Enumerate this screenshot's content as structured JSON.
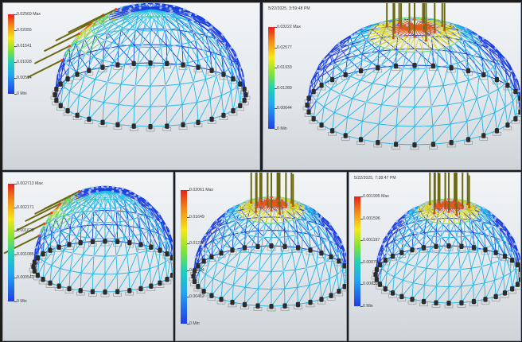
{
  "panels": [
    {
      "id": "p1",
      "timestamp": "",
      "legend": [
        "0.02569 Max",
        "0.02055",
        "0.01541",
        "0.01028",
        "0.00514",
        "0 Min"
      ],
      "load": "side"
    },
    {
      "id": "p2",
      "timestamp": "5/22/2025, 3:59:48 PM",
      "legend": [
        "0.03222 Max",
        "0.02577",
        "0.01933",
        "0.01289",
        "0.00644",
        "0 Min"
      ],
      "load": "top"
    },
    {
      "id": "p3",
      "timestamp": "",
      "legend": [
        "0.002713 Max",
        "0.002171",
        "0.001628",
        "0.001085",
        "0.000543",
        "0 Min"
      ],
      "load": "side"
    },
    {
      "id": "p4",
      "timestamp": "",
      "legend": [
        "0.02061 Max",
        "0.01649",
        "0.01236",
        "0.00824",
        "0.00412",
        "0 Min"
      ],
      "load": "top"
    },
    {
      "id": "p5",
      "timestamp": "5/22/2025, 7:38:47 PM",
      "legend": [
        "0.001995 Max",
        "0.001596",
        "0.001197",
        "0.000798",
        "0.000399",
        "0 Min"
      ],
      "load": "top"
    }
  ],
  "colors": {
    "frame_blue": "#1b3fe0",
    "frame_cyan": "#22b8e8",
    "node_dark": "#2b2b2b",
    "load_arrow": "#6b6a12",
    "background_dark": "#1c1c1c"
  }
}
